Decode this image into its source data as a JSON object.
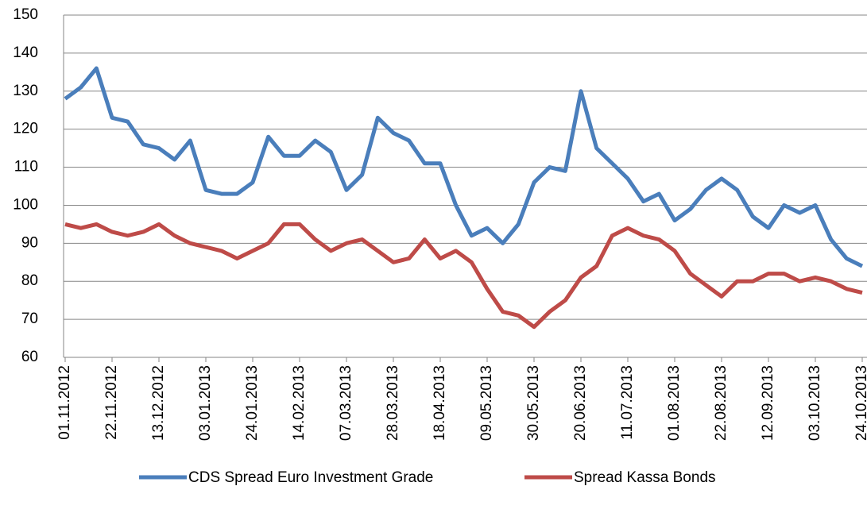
{
  "chart_data": {
    "type": "line",
    "categories": [
      "01.11.2012",
      null,
      null,
      "22.11.2012",
      null,
      null,
      "13.12.2012",
      null,
      null,
      "03.01.2013",
      null,
      null,
      "24.01.2013",
      null,
      null,
      "14.02.2013",
      null,
      null,
      "07.03.2013",
      null,
      null,
      "28.03.2013",
      null,
      null,
      "18.04.2013",
      null,
      null,
      "09.05.2013",
      null,
      null,
      "30.05.2013",
      null,
      null,
      "20.06.2013",
      null,
      null,
      "11.07.2013",
      null,
      null,
      "01.08.2013",
      null,
      null,
      "22.08.2013",
      null,
      null,
      "12.09.2013",
      null,
      null,
      "03.10.2013",
      null,
      null,
      "24.10.2013"
    ],
    "series": [
      {
        "name": "CDS Spread Euro Investment Grade",
        "color": "#4a7ebb",
        "values": [
          128,
          131,
          136,
          123,
          122,
          116,
          115,
          112,
          117,
          104,
          103,
          103,
          106,
          118,
          113,
          113,
          117,
          114,
          104,
          108,
          123,
          119,
          117,
          111,
          111,
          100,
          92,
          94,
          90,
          95,
          106,
          110,
          109,
          130,
          115,
          111,
          107,
          101,
          103,
          96,
          99,
          104,
          107,
          104,
          97,
          94,
          100,
          98,
          100,
          91,
          86,
          84
        ]
      },
      {
        "name": "Spread Kassa Bonds",
        "color": "#be4b48",
        "values": [
          95,
          94,
          95,
          93,
          92,
          93,
          95,
          92,
          90,
          89,
          88,
          86,
          88,
          90,
          95,
          95,
          91,
          88,
          90,
          91,
          88,
          85,
          86,
          91,
          86,
          88,
          85,
          78,
          72,
          71,
          68,
          72,
          75,
          81,
          84,
          92,
          94,
          92,
          91,
          88,
          82,
          79,
          76,
          80,
          80,
          82,
          82,
          80,
          81,
          80,
          78,
          77
        ]
      }
    ],
    "ylim": [
      60,
      150
    ],
    "yticks": [
      60,
      70,
      80,
      90,
      100,
      110,
      120,
      130,
      140,
      150
    ],
    "grid": true,
    "legend": "bottom"
  }
}
